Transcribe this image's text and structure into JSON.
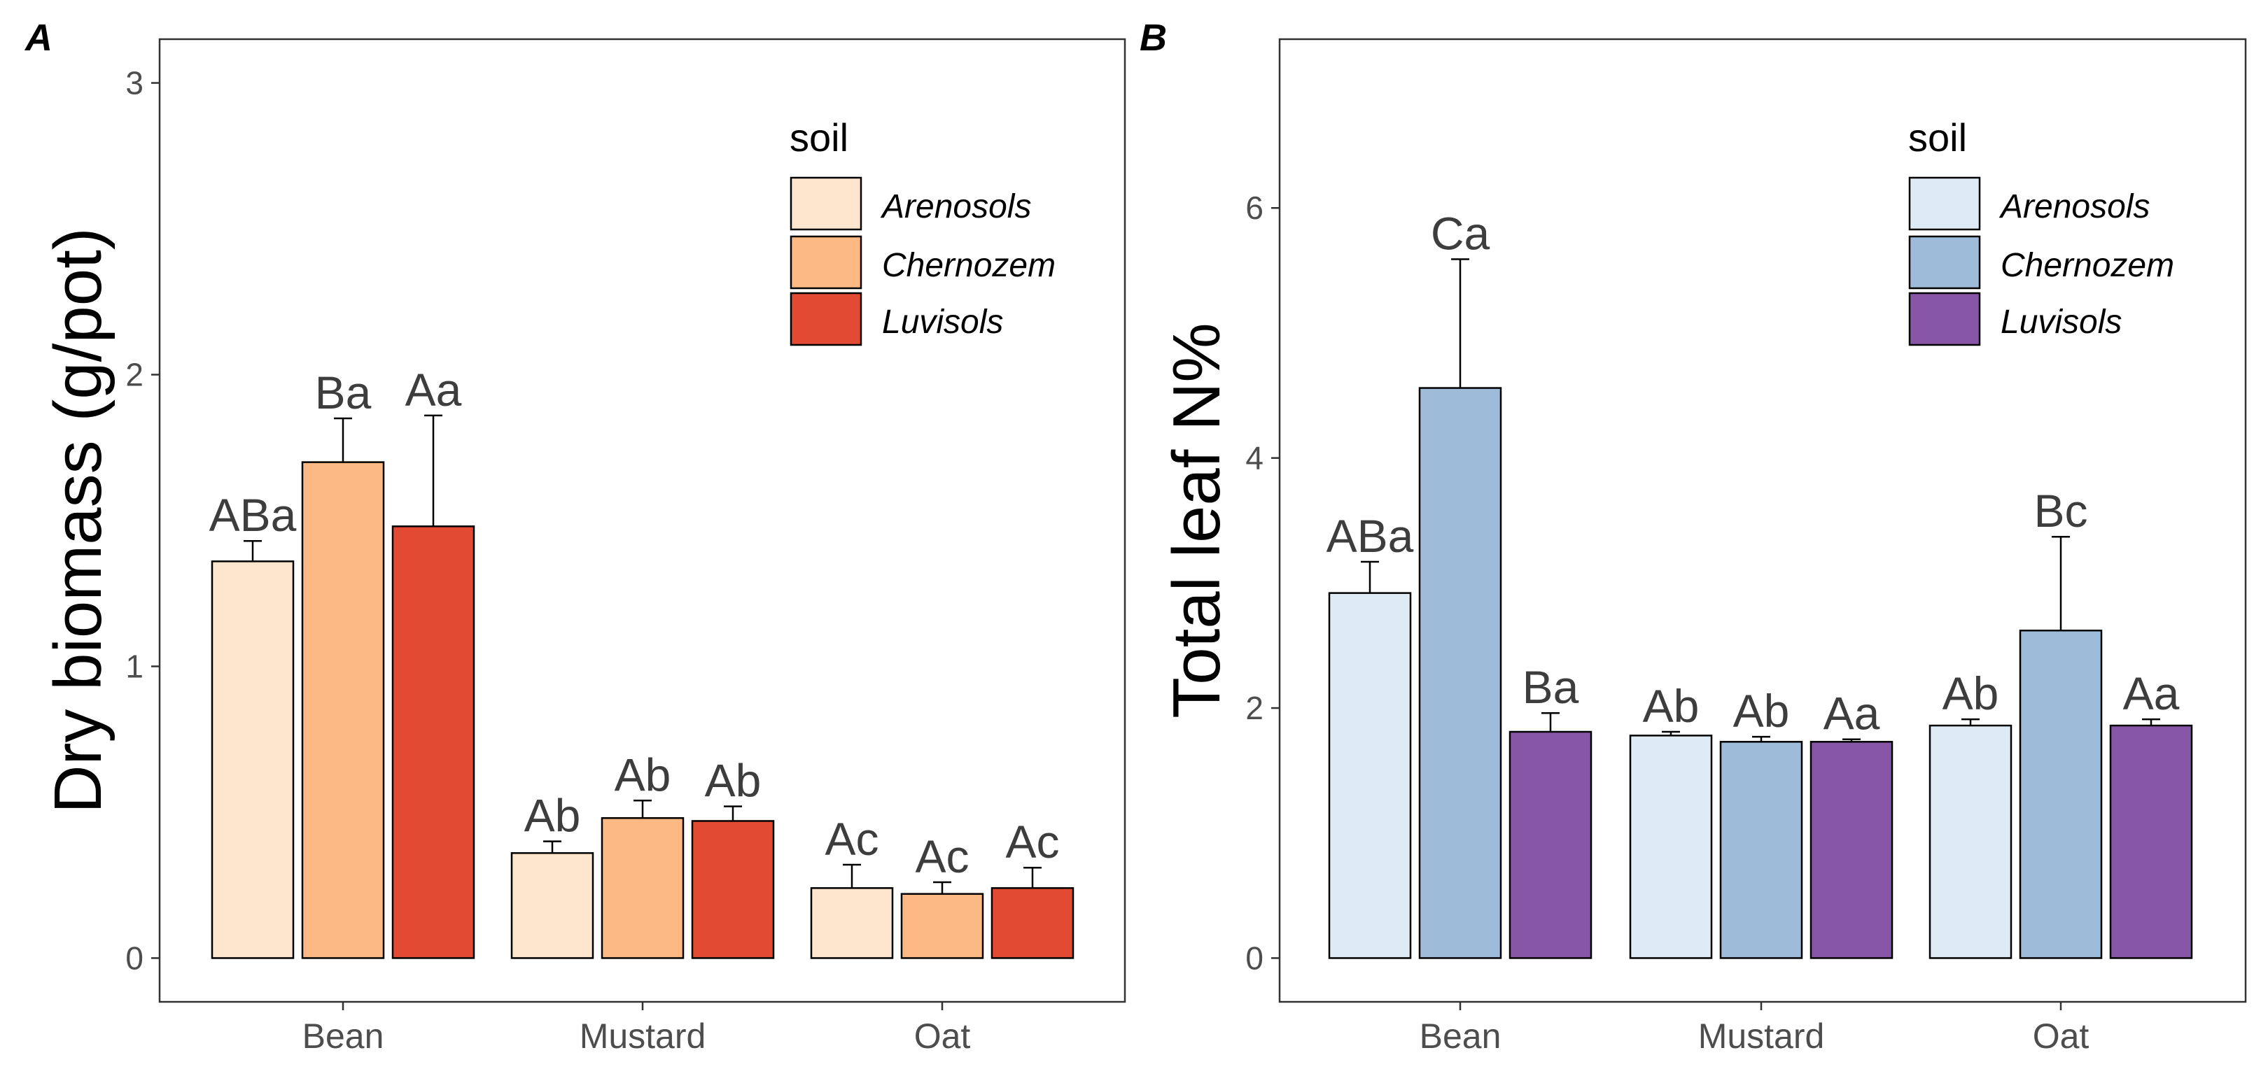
{
  "chart_data": [
    {
      "panel_tag": "A",
      "type": "bar",
      "ylabel": "Dry biomass (g/pot)",
      "xlabel": "",
      "categories": [
        "Bean",
        "Mustard",
        "Oat"
      ],
      "ylim": [
        -0.15,
        3.15
      ],
      "yticks": [
        0,
        1,
        2,
        3
      ],
      "ytick_labels": [
        "0",
        "1",
        "2",
        "3"
      ],
      "legend": {
        "title": "soil",
        "position": "top-right",
        "items": [
          "Arenosols",
          "Chernozem",
          "Luvisols"
        ]
      },
      "series": [
        {
          "name": "Arenosols",
          "color": "#FEE6CE",
          "values": [
            1.36,
            0.36,
            0.24
          ],
          "errors": [
            0.07,
            0.04,
            0.08
          ],
          "labels": [
            "ABa",
            "Ab",
            "Ac"
          ]
        },
        {
          "name": "Chernozem",
          "color": "#FDB983",
          "values": [
            1.7,
            0.48,
            0.22
          ],
          "errors": [
            0.15,
            0.06,
            0.04
          ],
          "labels": [
            "Ba",
            "Ab",
            "Ac"
          ]
        },
        {
          "name": "Luvisols",
          "color": "#E34A33",
          "values": [
            1.48,
            0.47,
            0.24
          ],
          "errors": [
            0.38,
            0.05,
            0.07
          ],
          "labels": [
            "Aa",
            "Ab",
            "Ac"
          ]
        }
      ]
    },
    {
      "panel_tag": "B",
      "type": "bar",
      "ylabel": "Total leaf N%",
      "xlabel": "",
      "categories": [
        "Bean",
        "Mustard",
        "Oat"
      ],
      "ylim": [
        -0.35,
        7.35
      ],
      "yticks": [
        0,
        2,
        4,
        6
      ],
      "ytick_labels": [
        "0",
        "2",
        "4",
        "6"
      ],
      "legend": {
        "title": "soil",
        "position": "top-right",
        "items": [
          "Arenosols",
          "Chernozem",
          "Luvisols"
        ]
      },
      "series": [
        {
          "name": "Arenosols",
          "color": "#DEEBF4",
          "values": [
            2.92,
            1.78,
            1.86
          ],
          "errors": [
            0.25,
            0.03,
            0.05
          ],
          "labels": [
            "ABa",
            "Ab",
            "Ab"
          ]
        },
        {
          "name": "Chernozem",
          "color": "#9EBCDA",
          "values": [
            4.56,
            1.73,
            2.62
          ],
          "errors": [
            1.03,
            0.04,
            0.75
          ],
          "labels": [
            "Ca",
            "Ab",
            "Bc"
          ]
        },
        {
          "name": "Luvisols",
          "color": "#8856A7",
          "values": [
            1.81,
            1.73,
            1.86
          ],
          "errors": [
            0.15,
            0.02,
            0.05
          ],
          "labels": [
            "Ba",
            "Aa",
            "Aa"
          ]
        }
      ]
    }
  ]
}
